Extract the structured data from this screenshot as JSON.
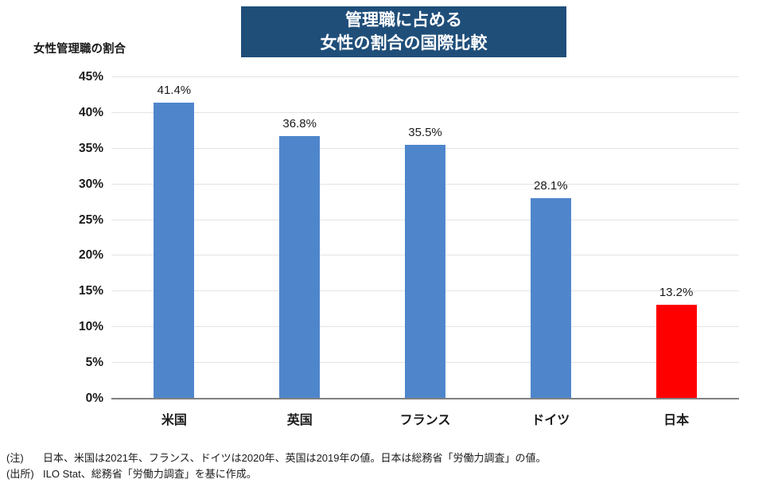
{
  "title": {
    "line1": "管理職に占める",
    "line2": "女性の割合の国際比較"
  },
  "axis_title": "女性管理職の割合",
  "chart_data": {
    "type": "bar",
    "title": "管理職に占める女性の割合の国際比較",
    "ylabel": "女性管理職の割合",
    "xlabel": "",
    "categories": [
      "米国",
      "英国",
      "フランス",
      "ドイツ",
      "日本"
    ],
    "values": [
      41.4,
      36.8,
      35.5,
      28.1,
      13.2
    ],
    "value_labels": [
      "41.4%",
      "36.8%",
      "35.5%",
      "28.1%",
      "13.2%"
    ],
    "bar_colors": [
      "#4F86CB",
      "#4F86CB",
      "#4F86CB",
      "#4F86CB",
      "#FF0000"
    ],
    "highlight_category": "日本",
    "ylim": [
      0,
      45
    ],
    "ytick_step": 5,
    "ytick_labels": [
      "0%",
      "5%",
      "10%",
      "15%",
      "20%",
      "25%",
      "30%",
      "35%",
      "40%",
      "45%"
    ],
    "grid": true,
    "legend_position": "none"
  },
  "notes": [
    {
      "prefix": "(注)",
      "text": "日本、米国は2021年、フランス、ドイツは2020年、英国は2019年の値。日本は総務省「労働力調査」の値。"
    },
    {
      "prefix": "(出所)",
      "text": "ILO Stat、総務省「労働力調査」を基に作成。"
    }
  ],
  "colors": {
    "title_bg": "#1F4E79",
    "title_text": "#FFFFFF",
    "bar_default": "#4F86CB",
    "bar_highlight": "#FF0000",
    "gridline": "#E3E3E3",
    "axis_line": "#808080",
    "text": "#1A1A1A",
    "background": "#FFFFFF"
  }
}
